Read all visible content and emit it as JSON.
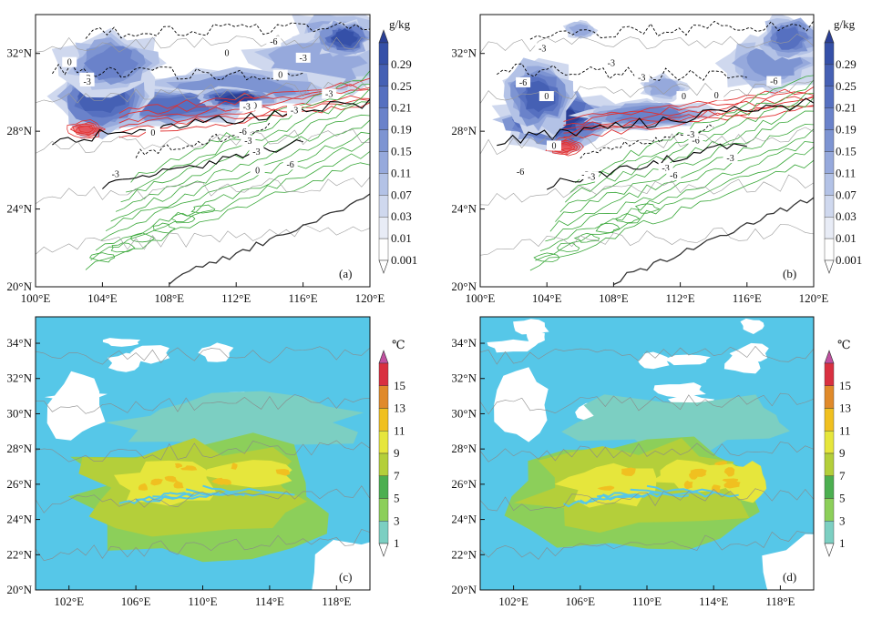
{
  "chart_data": [
    {
      "type": "heatmap",
      "panel_label": "(a)",
      "xlim": [
        100,
        120
      ],
      "ylim": [
        20,
        34
      ],
      "x_ticks": [
        100,
        104,
        108,
        112,
        116,
        120
      ],
      "x_tick_labels": [
        "100°E",
        "104°E",
        "108°E",
        "112°E",
        "116°E",
        "120°E"
      ],
      "y_ticks": [
        20,
        24,
        28,
        32
      ],
      "y_tick_labels": [
        "20°N",
        "24°N",
        "28°N",
        "32°N"
      ],
      "colorbar": {
        "unit": "g/kg",
        "levels": [
          0.001,
          0.01,
          0.03,
          0.07,
          0.11,
          0.15,
          0.19,
          0.21,
          0.25,
          0.29
        ],
        "labels": [
          "0.001",
          "0.01",
          "0.03",
          "0.07",
          "0.11",
          "0.15",
          "0.19",
          "0.21",
          "0.25",
          "0.29"
        ]
      },
      "contour_labels": [
        "-3",
        "-6",
        "-3",
        "0",
        "-3",
        "-3",
        "-6",
        "-6",
        "-3",
        "0",
        "0",
        "-3",
        "-3",
        "0",
        "-3",
        "0",
        "-3",
        "0"
      ]
    },
    {
      "type": "heatmap",
      "panel_label": "(b)",
      "xlim": [
        100,
        120
      ],
      "ylim": [
        20,
        34
      ],
      "x_ticks": [
        100,
        104,
        108,
        112,
        116,
        120
      ],
      "x_tick_labels": [
        "100°E",
        "104°E",
        "108°E",
        "112°E",
        "116°E",
        "120°E"
      ],
      "y_ticks": [
        20,
        24,
        28,
        32
      ],
      "y_tick_labels": [
        "20°N",
        "24°N",
        "28°N",
        "32°N"
      ],
      "colorbar": {
        "unit": "g/kg",
        "levels": [
          0.001,
          0.01,
          0.03,
          0.07,
          0.11,
          0.15,
          0.19,
          0.21,
          0.25,
          0.29
        ],
        "labels": [
          "0.001",
          "0.01",
          "0.03",
          "0.07",
          "0.11",
          "0.15",
          "0.19",
          "0.21",
          "0.25",
          "0.29"
        ]
      },
      "contour_labels": [
        "-6",
        "-3",
        "-6",
        "-3",
        "0",
        "-6",
        "-3",
        "-3",
        "-6",
        "-6",
        "-3",
        "-3",
        "0",
        "-3",
        "0",
        "-3",
        "0"
      ]
    },
    {
      "type": "heatmap",
      "panel_label": "(c)",
      "xlim": [
        100,
        120
      ],
      "ylim": [
        20,
        35.5
      ],
      "x_ticks": [
        102,
        106,
        110,
        114,
        118
      ],
      "x_tick_labels": [
        "102°E",
        "106°E",
        "110°E",
        "114°E",
        "118°E"
      ],
      "y_ticks": [
        20,
        22,
        24,
        26,
        28,
        30,
        32,
        34
      ],
      "y_tick_labels": [
        "20°N",
        "22°N",
        "24°N",
        "26°N",
        "28°N",
        "30°N",
        "32°N",
        "34°N"
      ],
      "colorbar": {
        "unit": "℃",
        "levels": [
          1,
          3,
          5,
          7,
          9,
          11,
          13,
          15
        ],
        "labels": [
          "1",
          "3",
          "5",
          "7",
          "9",
          "11",
          "13",
          "15"
        ]
      }
    },
    {
      "type": "heatmap",
      "panel_label": "(d)",
      "xlim": [
        100,
        120
      ],
      "ylim": [
        20,
        35.5
      ],
      "x_ticks": [
        102,
        106,
        110,
        114,
        118
      ],
      "x_tick_labels": [
        "102°E",
        "106°E",
        "110°E",
        "114°E",
        "118°E"
      ],
      "y_ticks": [
        20,
        22,
        24,
        26,
        28,
        30,
        32,
        34
      ],
      "y_tick_labels": [
        "20°N",
        "22°N",
        "24°N",
        "26°N",
        "28°N",
        "30°N",
        "32°N",
        "34°N"
      ],
      "colorbar": {
        "unit": "℃",
        "levels": [
          1,
          3,
          5,
          7,
          9,
          11,
          13,
          15
        ],
        "labels": [
          "1",
          "3",
          "5",
          "7",
          "9",
          "11",
          "13",
          "15"
        ]
      }
    }
  ],
  "colors": {
    "qi": [
      "#ffffff",
      "#e8ecf6",
      "#cfd8ee",
      "#b3c2e6",
      "#96a9dc",
      "#7d94d2",
      "#6a82ca",
      "#5670c0",
      "#4560b4",
      "#3550a8",
      "#2a3f95"
    ],
    "temp": [
      "#ffffff",
      "#56c7e8",
      "#7ccfc2",
      "#8ccf5a",
      "#4caf50",
      "#b4cf3a",
      "#e6e63c",
      "#f0c020",
      "#e08a2a",
      "#d93040",
      "#c050a0"
    ],
    "red_contour": "#e03030",
    "green_contour": "#3aa83a",
    "black_contour": "#000000"
  }
}
